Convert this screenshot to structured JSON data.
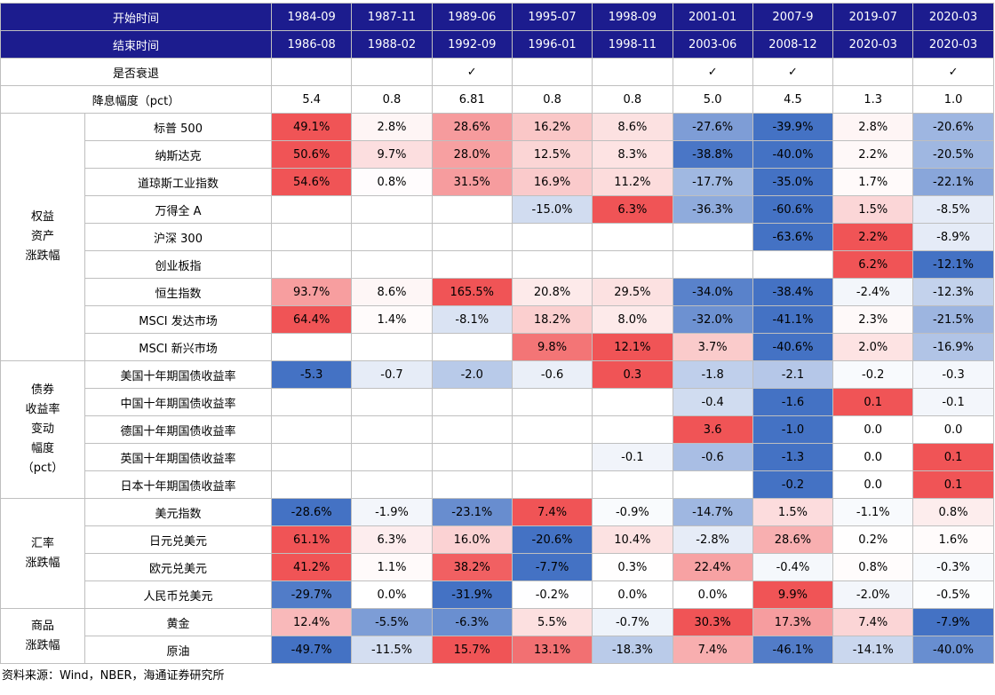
{
  "header": {
    "rows": [
      {
        "label": "开始时间",
        "cells": [
          "1984-09",
          "1987-11",
          "1989-06",
          "1995-07",
          "1998-09",
          "2001-01",
          "2007-9",
          "2019-07",
          "2020-03"
        ]
      },
      {
        "label": "结束时间",
        "cells": [
          "1986-08",
          "1988-02",
          "1992-09",
          "1996-01",
          "1998-11",
          "2003-06",
          "2008-12",
          "2020-03",
          "2020-03"
        ]
      },
      {
        "label": "是否衰退",
        "cells": [
          null,
          null,
          "✓",
          null,
          null,
          "✓",
          "✓",
          null,
          "✓"
        ]
      },
      {
        "label": "降息幅度（pct）",
        "cells": [
          "5.4",
          "0.8",
          "6.81",
          "0.8",
          "0.8",
          "5.0",
          "4.5",
          "1.3",
          "1.0"
        ]
      }
    ]
  },
  "groups": [
    {
      "label_lines": [
        "权益",
        "资产",
        "涨跌幅"
      ],
      "rows": [
        {
          "label": "标普 500",
          "cells": [
            "49.1%",
            "2.8%",
            "28.6%",
            "16.2%",
            "8.6%",
            "-27.6%",
            "-39.9%",
            "2.8%",
            "-20.6%"
          ]
        },
        {
          "label": "纳斯达克",
          "cells": [
            "50.6%",
            "9.7%",
            "28.0%",
            "12.5%",
            "8.3%",
            "-38.8%",
            "-40.0%",
            "2.2%",
            "-20.5%"
          ]
        },
        {
          "label": "道琼斯工业指数",
          "cells": [
            "54.6%",
            "0.8%",
            "31.5%",
            "16.9%",
            "11.2%",
            "-17.7%",
            "-35.0%",
            "1.7%",
            "-22.1%"
          ]
        },
        {
          "label": "万得全 A",
          "cells": [
            null,
            null,
            null,
            "-15.0%",
            "6.3%",
            "-36.3%",
            "-60.6%",
            "1.5%",
            "-8.5%"
          ]
        },
        {
          "label": "沪深 300",
          "cells": [
            null,
            null,
            null,
            null,
            null,
            null,
            "-63.6%",
            "2.2%",
            "-8.9%"
          ]
        },
        {
          "label": "创业板指",
          "cells": [
            null,
            null,
            null,
            null,
            null,
            null,
            null,
            "6.2%",
            "-12.1%"
          ]
        },
        {
          "label": "恒生指数",
          "cells": [
            "93.7%",
            "8.6%",
            "165.5%",
            "20.8%",
            "29.5%",
            "-34.0%",
            "-38.4%",
            "-2.4%",
            "-12.3%"
          ]
        },
        {
          "label": "MSCI 发达市场",
          "cells": [
            "64.4%",
            "1.4%",
            "-8.1%",
            "18.2%",
            "8.0%",
            "-32.0%",
            "-41.1%",
            "2.3%",
            "-21.5%"
          ]
        },
        {
          "label": "MSCI 新兴市场",
          "cells": [
            null,
            null,
            null,
            "9.8%",
            "12.1%",
            "3.7%",
            "-40.6%",
            "2.0%",
            "-16.9%"
          ]
        }
      ]
    },
    {
      "label_lines": [
        "债券",
        "收益率",
        "变动",
        "幅度",
        "（pct）"
      ],
      "rows": [
        {
          "label": "美国十年期国债收益率",
          "cells": [
            "-5.3",
            "-0.7",
            "-2.0",
            "-0.6",
            "0.3",
            "-1.8",
            "-2.1",
            "-0.2",
            "-0.3"
          ]
        },
        {
          "label": "中国十年期国债收益率",
          "cells": [
            null,
            null,
            null,
            null,
            null,
            "-0.4",
            "-1.6",
            "0.1",
            "-0.1"
          ]
        },
        {
          "label": "德国十年期国债收益率",
          "cells": [
            null,
            null,
            null,
            null,
            null,
            "3.6",
            "-1.0",
            "0.0",
            "0.0"
          ]
        },
        {
          "label": "英国十年期国债收益率",
          "cells": [
            null,
            null,
            null,
            null,
            "-0.1",
            "-0.6",
            "-1.3",
            "0.0",
            "0.1"
          ]
        },
        {
          "label": "日本十年期国债收益率",
          "cells": [
            null,
            null,
            null,
            null,
            null,
            null,
            "-0.2",
            "0.0",
            "0.1"
          ]
        }
      ]
    },
    {
      "label_lines": [
        "汇率",
        "涨跌幅"
      ],
      "rows": [
        {
          "label": "美元指数",
          "cells": [
            "-28.6%",
            "-1.9%",
            "-23.1%",
            "7.4%",
            "-0.9%",
            "-14.7%",
            "1.5%",
            "-1.1%",
            "0.8%"
          ]
        },
        {
          "label": "日元兑美元",
          "cells": [
            "61.1%",
            "6.3%",
            "16.0%",
            "-20.6%",
            "10.4%",
            "-2.8%",
            "28.6%",
            "0.2%",
            "1.6%"
          ]
        },
        {
          "label": "欧元兑美元",
          "cells": [
            "41.2%",
            "1.1%",
            "38.2%",
            "-7.7%",
            "0.3%",
            "22.4%",
            "-0.4%",
            "0.8%",
            "-0.3%"
          ]
        },
        {
          "label": "人民币兑美元",
          "cells": [
            "-29.7%",
            "0.0%",
            "-31.9%",
            "-0.2%",
            "0.0%",
            "0.0%",
            "9.9%",
            "-2.0%",
            "-0.5%"
          ]
        }
      ]
    },
    {
      "label_lines": [
        "商品",
        "涨跌幅"
      ],
      "rows": [
        {
          "label": "黄金",
          "cells": [
            "12.4%",
            "-5.5%",
            "-6.3%",
            "5.5%",
            "-0.7%",
            "30.3%",
            "17.3%",
            "7.4%",
            "-7.9%"
          ]
        },
        {
          "label": "原油",
          "cells": [
            "-49.7%",
            "-11.5%",
            "15.7%",
            "13.1%",
            "-18.3%",
            "7.4%",
            "-46.1%",
            "-14.1%",
            "-40.0%"
          ]
        }
      ]
    }
  ],
  "source": "资料来源：Wind，NBER，海通证券研究所"
}
